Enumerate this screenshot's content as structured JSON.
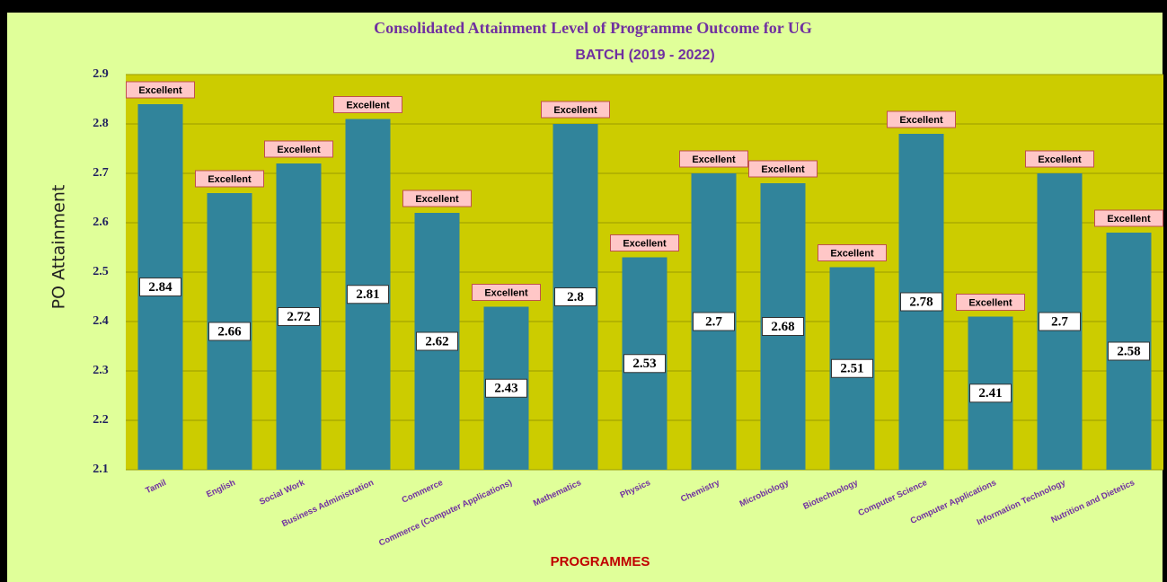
{
  "chart_data": {
    "type": "bar",
    "title": "Consolidated Attainment Level of Programme Outcome for UG",
    "subtitle": "BATCH  (2019 - 2022)",
    "x_label": "PROGRAMMES",
    "y_label": "PO Attainment",
    "categories": [
      "Tamil",
      "English",
      "Social Work",
      "Business Administration",
      "Commerce",
      "Commerce (Computer Applications)",
      "Mathematics",
      "Physics",
      "Chemistry",
      "Microbiology",
      "Biotechnology",
      "Computer Science",
      "Computer Applications",
      "Information Technology",
      "Nutrition and Dietetics"
    ],
    "values": [
      2.84,
      2.66,
      2.72,
      2.81,
      2.62,
      2.43,
      2.8,
      2.53,
      2.7,
      2.68,
      2.51,
      2.78,
      2.41,
      2.7,
      2.58
    ],
    "annotations": [
      "Excellent",
      "Excellent",
      "Excellent",
      "Excellent",
      "Excellent",
      "Excellent",
      "Excellent",
      "Excellent",
      "Excellent",
      "Excellent",
      "Excellent",
      "Excellent",
      "Excellent",
      "Excellent",
      "Excellent"
    ],
    "color": "#31849b",
    "ylim": [
      2.1,
      2.9
    ],
    "yticks": [
      2.1,
      2.2,
      2.3,
      2.4,
      2.5,
      2.6,
      2.7,
      2.8,
      2.9
    ],
    "grid": true
  }
}
